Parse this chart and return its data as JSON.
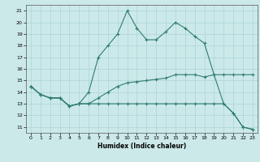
{
  "xlabel": "Humidex (Indice chaleur)",
  "xlim": [
    -0.5,
    23.5
  ],
  "ylim": [
    10.5,
    21.5
  ],
  "xticks": [
    0,
    1,
    2,
    3,
    4,
    5,
    6,
    7,
    8,
    9,
    10,
    11,
    12,
    13,
    14,
    15,
    16,
    17,
    18,
    19,
    20,
    21,
    22,
    23
  ],
  "yticks": [
    11,
    12,
    13,
    14,
    15,
    16,
    17,
    18,
    19,
    20,
    21
  ],
  "background_color": "#cce9e9",
  "grid_color": "#aad4d4",
  "line_color": "#2e7d6e",
  "line1_x": [
    0,
    1,
    2,
    3,
    4,
    5,
    6,
    7,
    8,
    9,
    10,
    11,
    12,
    13,
    14,
    15,
    16,
    17,
    18,
    19,
    20,
    21,
    22,
    23
  ],
  "line1_y": [
    14.5,
    13.8,
    13.5,
    13.5,
    12.8,
    13.0,
    14.0,
    17.0,
    18.0,
    19.0,
    21.0,
    19.5,
    18.5,
    18.5,
    19.2,
    20.0,
    19.5,
    18.8,
    18.2,
    15.5,
    15.5,
    15.5,
    15.5,
    15.5
  ],
  "line2_x": [
    0,
    1,
    2,
    3,
    4,
    5,
    6,
    7,
    8,
    9,
    10,
    11,
    12,
    13,
    14,
    15,
    16,
    17,
    18,
    19,
    20,
    21,
    22,
    23
  ],
  "line2_y": [
    14.5,
    13.8,
    13.5,
    13.5,
    12.8,
    13.0,
    13.0,
    13.5,
    14.0,
    14.5,
    14.8,
    14.9,
    15.0,
    15.1,
    15.2,
    15.5,
    15.5,
    15.5,
    15.3,
    15.5,
    13.0,
    12.2,
    11.0,
    10.8
  ],
  "line3_x": [
    0,
    1,
    2,
    3,
    4,
    5,
    6,
    7,
    8,
    9,
    10,
    11,
    12,
    13,
    14,
    15,
    16,
    17,
    18,
    19,
    20,
    21,
    22,
    23
  ],
  "line3_y": [
    14.5,
    13.8,
    13.5,
    13.5,
    12.8,
    13.0,
    13.0,
    13.0,
    13.0,
    13.0,
    13.0,
    13.0,
    13.0,
    13.0,
    13.0,
    13.0,
    13.0,
    13.0,
    13.0,
    13.0,
    13.0,
    12.2,
    11.0,
    10.8
  ]
}
